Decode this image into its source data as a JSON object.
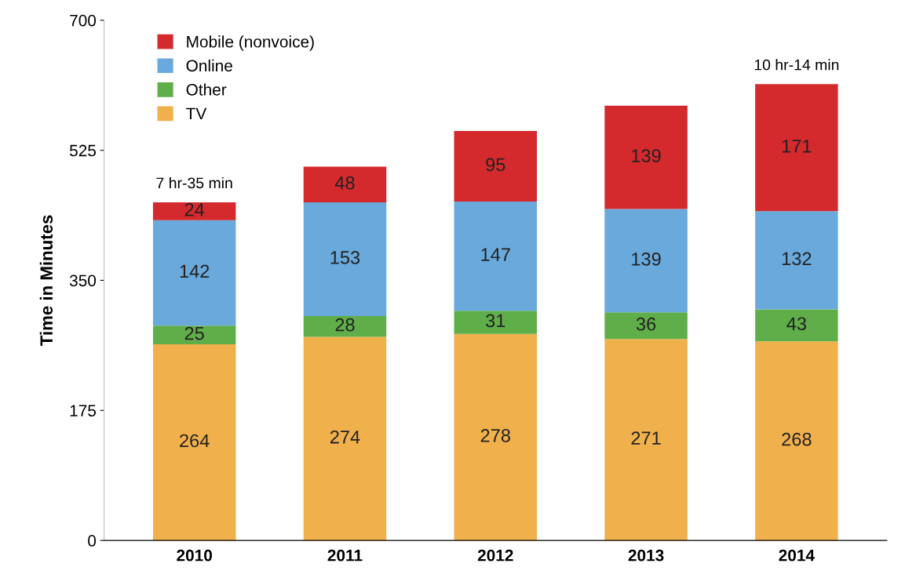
{
  "chart_data": {
    "type": "bar",
    "stacked": true,
    "ylabel": "Time in Minutes",
    "categories": [
      "2010",
      "2011",
      "2012",
      "2013",
      "2014"
    ],
    "series": [
      {
        "name": "TV",
        "color": "#f0b04c",
        "values": [
          264,
          274,
          278,
          271,
          268
        ]
      },
      {
        "name": "Other",
        "color": "#5fae4a",
        "values": [
          25,
          28,
          31,
          36,
          43
        ]
      },
      {
        "name": "Online",
        "color": "#6aa9dc",
        "values": [
          142,
          153,
          147,
          139,
          132
        ]
      },
      {
        "name": "Mobile (nonvoice)",
        "color": "#d42a2e",
        "values": [
          24,
          48,
          95,
          139,
          171
        ]
      }
    ],
    "ylim": [
      0,
      700
    ],
    "yticks": [
      0,
      175,
      350,
      525,
      700
    ],
    "data_labels": true,
    "grid": false,
    "legend": "top left",
    "annotations": [
      {
        "text": "7 hr-35 min",
        "x": "2010",
        "y": 455
      },
      {
        "text": "10 hr-14 min",
        "x": "2014",
        "y": 614
      }
    ]
  }
}
